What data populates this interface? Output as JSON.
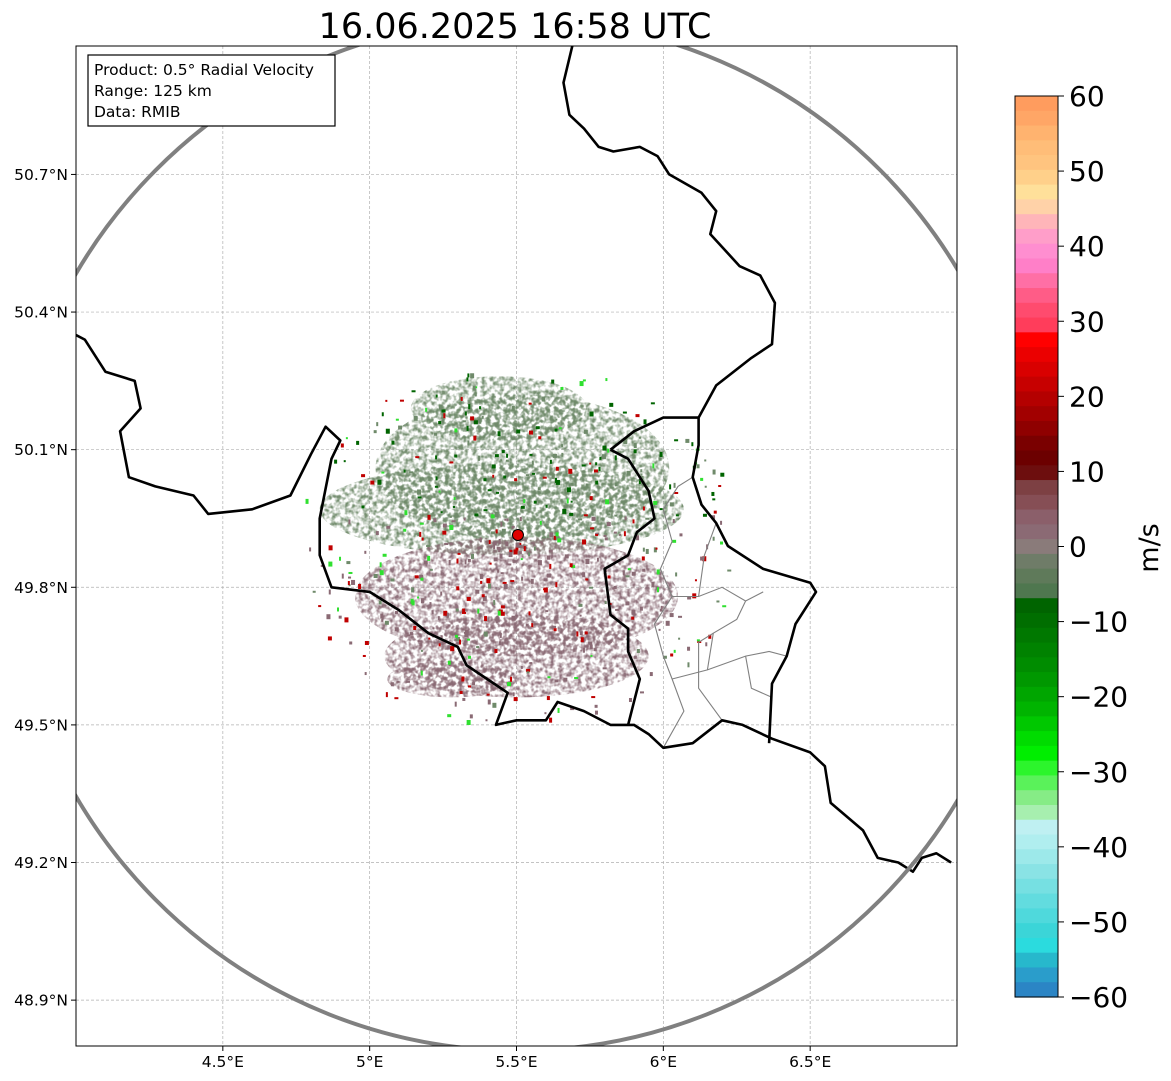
{
  "title": "16.06.2025 16:58 UTC",
  "info_box": {
    "product": "Product: 0.5° Radial Velocity",
    "range": "Range: 125 km",
    "data": "Data: RMIB"
  },
  "axes": {
    "lon_min": 4.0,
    "lon_max": 7.0,
    "lat_min": 48.8,
    "lat_max": 50.98,
    "x_ticks": [
      {
        "value": 4.5,
        "label": "4.5°E"
      },
      {
        "value": 5.0,
        "label": "5°E"
      },
      {
        "value": 5.5,
        "label": "5.5°E"
      },
      {
        "value": 6.0,
        "label": "6°E"
      },
      {
        "value": 6.5,
        "label": "6.5°E"
      }
    ],
    "y_ticks": [
      {
        "value": 50.7,
        "label": "50.7°N"
      },
      {
        "value": 50.4,
        "label": "50.4°N"
      },
      {
        "value": 50.1,
        "label": "50.1°N"
      },
      {
        "value": 49.8,
        "label": "49.8°N"
      },
      {
        "value": 49.5,
        "label": "49.5°N"
      },
      {
        "value": 49.2,
        "label": "49.2°N"
      },
      {
        "value": 48.9,
        "label": "48.9°N"
      }
    ],
    "grid": true
  },
  "radar_site": {
    "lon": 5.505,
    "lat": 49.914,
    "range_km": 125
  },
  "colorbar": {
    "label": "m/s",
    "vmin": -60,
    "vmax": 60,
    "tick_labels": [
      "60",
      "50",
      "40",
      "30",
      "20",
      "10",
      "0",
      "−10",
      "−20",
      "−30",
      "−40",
      "−50",
      "−60"
    ],
    "tick_values": [
      60,
      50,
      40,
      30,
      20,
      10,
      0,
      -10,
      -20,
      -30,
      -40,
      -50,
      -60
    ],
    "colors_top_to_bottom": [
      "#ff9c5e",
      "#ffa666",
      "#ffb36f",
      "#ffbd78",
      "#ffc47f",
      "#ffd08a",
      "#ffe09a",
      "#ffd2a8",
      "#ffb5b9",
      "#ff9ec9",
      "#ff8ed0",
      "#ff7fc8",
      "#ff6fa5",
      "#ff5c87",
      "#ff4b6e",
      "#ff3d5b",
      "#ff0000",
      "#eb0000",
      "#d90000",
      "#c70000",
      "#b40000",
      "#a20000",
      "#8f0000",
      "#7a0000",
      "#6c0000",
      "#6d0e0e",
      "#7d4043",
      "#864e55",
      "#8b5f6a",
      "#8b6a74",
      "#8a7b7a",
      "#6f7c68",
      "#5f7a5a",
      "#4f774f",
      "#006400",
      "#006e00",
      "#007800",
      "#008200",
      "#008c00",
      "#009800",
      "#00a600",
      "#00b400",
      "#00c800",
      "#00dc00",
      "#00ee00",
      "#2cf52c",
      "#5af25a",
      "#86ec86",
      "#a7efaf",
      "#bff0f2",
      "#b0eeef",
      "#9de9ea",
      "#8ae3e5",
      "#76e0e2",
      "#62dcdf",
      "#4fd9dc",
      "#3bd5d8",
      "#2bdbde",
      "#27b8cc",
      "#2a9dcb",
      "#2b85c5"
    ]
  },
  "colors": {
    "outer_circle": "#808080",
    "border": "#000000",
    "province": "#808080",
    "grid": "#b0b0b0",
    "site_marker": "#e00000",
    "echo_main": "#6f8a6a",
    "echo_south": "#8a6a74",
    "echo_dark_green": "#006400",
    "echo_red": "#c00000",
    "echo_bright_green": "#30e030"
  },
  "echo_blobs": [
    {
      "lon": 5.52,
      "lat": 50.06,
      "rx": 0.5,
      "ry": 0.16,
      "tone": "green"
    },
    {
      "lon": 5.45,
      "lat": 49.97,
      "rx": 0.62,
      "ry": 0.1,
      "tone": "green"
    },
    {
      "lon": 5.44,
      "lat": 50.19,
      "rx": 0.3,
      "ry": 0.07,
      "tone": "green"
    },
    {
      "lon": 5.5,
      "lat": 49.78,
      "rx": 0.55,
      "ry": 0.13,
      "tone": "mauve"
    },
    {
      "lon": 5.5,
      "lat": 49.65,
      "rx": 0.45,
      "ry": 0.09,
      "tone": "mauve"
    },
    {
      "lon": 5.28,
      "lat": 49.6,
      "rx": 0.22,
      "ry": 0.04,
      "tone": "mauve"
    }
  ],
  "borders": [
    [
      [
        4.0,
        50.35
      ],
      [
        4.03,
        50.34
      ],
      [
        4.1,
        50.27
      ],
      [
        4.2,
        50.25
      ],
      [
        4.22,
        50.19
      ],
      [
        4.15,
        50.14
      ],
      [
        4.18,
        50.04
      ],
      [
        4.27,
        50.02
      ],
      [
        4.4,
        50.0
      ],
      [
        4.45,
        49.96
      ],
      [
        4.6,
        49.97
      ],
      [
        4.73,
        50.0
      ],
      [
        4.8,
        50.09
      ],
      [
        4.85,
        50.15
      ],
      [
        4.9,
        50.12
      ],
      [
        4.87,
        50.08
      ],
      [
        4.83,
        49.95
      ],
      [
        4.83,
        49.87
      ],
      [
        4.87,
        49.8
      ],
      [
        5.0,
        49.79
      ],
      [
        5.1,
        49.75
      ],
      [
        5.2,
        49.7
      ],
      [
        5.3,
        49.67
      ],
      [
        5.33,
        49.63
      ],
      [
        5.4,
        49.6
      ],
      [
        5.47,
        49.57
      ],
      [
        5.43,
        49.5
      ],
      [
        5.5,
        49.51
      ],
      [
        5.6,
        49.51
      ],
      [
        5.64,
        49.55
      ],
      [
        5.73,
        49.53
      ],
      [
        5.82,
        49.5
      ],
      [
        5.9,
        49.5
      ],
      [
        5.95,
        49.48
      ],
      [
        6.0,
        49.45
      ],
      [
        6.1,
        49.46
      ],
      [
        6.2,
        49.51
      ],
      [
        6.27,
        49.5
      ],
      [
        6.37,
        49.47
      ],
      [
        6.5,
        49.44
      ],
      [
        6.55,
        49.41
      ],
      [
        6.57,
        49.33
      ],
      [
        6.68,
        49.27
      ],
      [
        6.73,
        49.21
      ],
      [
        6.8,
        49.2
      ],
      [
        6.85,
        49.18
      ],
      [
        6.88,
        49.21
      ],
      [
        6.93,
        49.22
      ],
      [
        6.98,
        49.2
      ]
    ],
    [
      [
        5.69,
        50.98
      ],
      [
        5.66,
        50.9
      ],
      [
        5.68,
        50.83
      ],
      [
        5.73,
        50.8
      ],
      [
        5.78,
        50.76
      ],
      [
        5.83,
        50.75
      ],
      [
        5.92,
        50.76
      ],
      [
        5.98,
        50.74
      ],
      [
        6.02,
        50.7
      ],
      [
        6.13,
        50.66
      ],
      [
        6.18,
        50.62
      ],
      [
        6.16,
        50.57
      ],
      [
        6.26,
        50.5
      ],
      [
        6.33,
        50.48
      ],
      [
        6.38,
        50.42
      ],
      [
        6.37,
        50.33
      ],
      [
        6.3,
        50.3
      ],
      [
        6.18,
        50.24
      ],
      [
        6.12,
        50.17
      ],
      [
        6.12,
        50.11
      ],
      [
        6.1,
        50.04
      ],
      [
        6.13,
        49.98
      ],
      [
        6.18,
        49.94
      ],
      [
        6.22,
        49.89
      ],
      [
        6.34,
        49.84
      ],
      [
        6.5,
        49.81
      ],
      [
        6.52,
        49.79
      ],
      [
        6.45,
        49.72
      ],
      [
        6.42,
        49.65
      ],
      [
        6.37,
        49.59
      ],
      [
        6.36,
        49.46
      ]
    ],
    [
      [
        5.82,
        50.1
      ],
      [
        5.88,
        50.08
      ],
      [
        5.95,
        50.01
      ],
      [
        5.97,
        49.95
      ],
      [
        5.91,
        49.92
      ],
      [
        5.88,
        49.87
      ],
      [
        5.8,
        49.84
      ],
      [
        5.82,
        49.74
      ],
      [
        5.88,
        49.71
      ],
      [
        5.88,
        49.66
      ],
      [
        5.92,
        49.6
      ],
      [
        5.88,
        49.5
      ]
    ],
    [
      [
        5.82,
        50.1
      ],
      [
        5.9,
        50.14
      ],
      [
        6.0,
        50.17
      ],
      [
        6.12,
        50.17
      ]
    ]
  ],
  "provinces": [
    [
      [
        6.0,
        49.45
      ],
      [
        6.07,
        49.53
      ],
      [
        6.03,
        49.6
      ],
      [
        6.0,
        49.65
      ],
      [
        5.97,
        49.72
      ],
      [
        6.03,
        49.78
      ],
      [
        5.99,
        49.84
      ],
      [
        6.03,
        49.9
      ],
      [
        6.0,
        49.97
      ],
      [
        6.05,
        50.02
      ],
      [
        6.1,
        50.04
      ]
    ],
    [
      [
        6.03,
        49.6
      ],
      [
        6.15,
        49.62
      ],
      [
        6.28,
        49.65
      ],
      [
        6.36,
        49.66
      ],
      [
        6.42,
        49.65
      ]
    ],
    [
      [
        6.03,
        49.78
      ],
      [
        6.12,
        49.78
      ],
      [
        6.2,
        49.8
      ],
      [
        6.28,
        49.77
      ],
      [
        6.34,
        49.79
      ]
    ],
    [
      [
        6.15,
        49.62
      ],
      [
        6.17,
        49.7
      ],
      [
        6.25,
        49.73
      ],
      [
        6.28,
        49.77
      ]
    ],
    [
      [
        6.12,
        49.78
      ],
      [
        6.14,
        49.87
      ],
      [
        6.18,
        49.94
      ]
    ],
    [
      [
        6.17,
        49.7
      ],
      [
        6.12,
        49.68
      ],
      [
        6.12,
        49.58
      ],
      [
        6.2,
        49.51
      ]
    ],
    [
      [
        6.28,
        49.65
      ],
      [
        6.3,
        49.58
      ],
      [
        6.37,
        49.56
      ]
    ]
  ]
}
